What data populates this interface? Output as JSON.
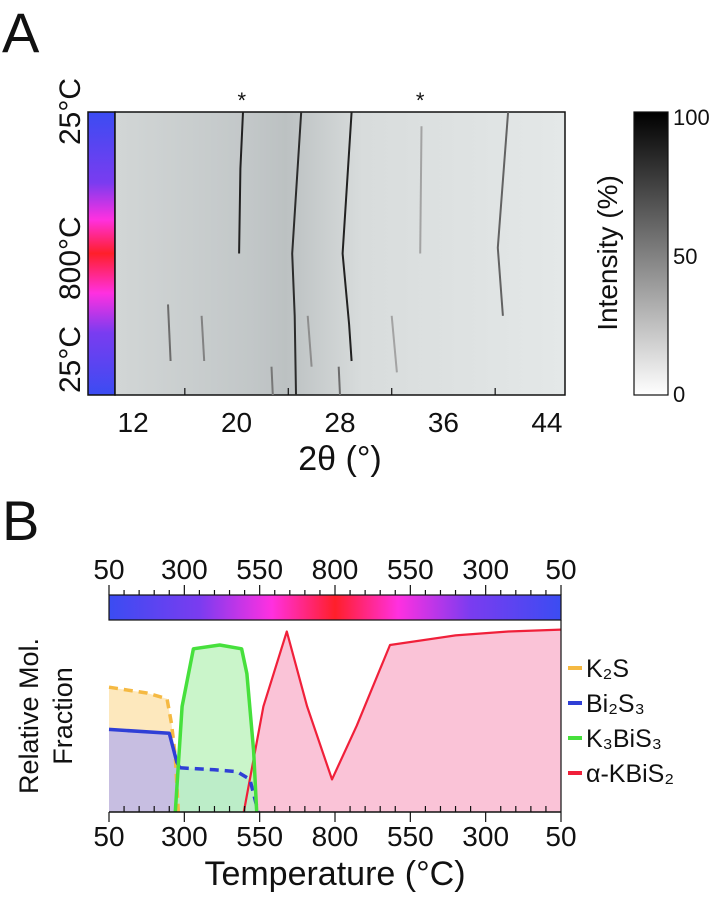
{
  "chart_data": [
    {
      "panel": "A",
      "type": "heatmap",
      "xlabel": "2θ (°)",
      "xticks": [
        "12",
        "20",
        "28",
        "36",
        "44"
      ],
      "xlim": [
        10.6,
        45.4
      ],
      "ylabels": [
        "25°C",
        "800°C",
        "25°C"
      ],
      "colorbar": {
        "label": "Intensity (%)",
        "ticks": [
          "100",
          "50",
          "0"
        ],
        "range": [
          0,
          100
        ]
      },
      "markers": [
        {
          "label": "*",
          "two_theta": 20.4
        },
        {
          "label": "*",
          "two_theta": 34.2
        }
      ],
      "reflections": [
        {
          "points": [
            [
              20.5,
              0.0
            ],
            [
              20.3,
              0.2
            ],
            [
              20.2,
              0.5
            ]
          ],
          "intensity": 85
        },
        {
          "points": [
            [
              25.0,
              0.0
            ],
            [
              24.3,
              0.5
            ],
            [
              24.5,
              0.72
            ],
            [
              24.6,
              1.0
            ]
          ],
          "intensity": 80
        },
        {
          "points": [
            [
              28.9,
              0.0
            ],
            [
              28.2,
              0.5
            ],
            [
              28.7,
              0.75
            ],
            [
              28.9,
              0.88
            ]
          ],
          "intensity": 85
        },
        {
          "points": [
            [
              34.3,
              0.05
            ],
            [
              34.2,
              0.5
            ]
          ],
          "intensity": 25
        },
        {
          "points": [
            [
              41.0,
              0.0
            ],
            [
              40.2,
              0.48
            ],
            [
              40.6,
              0.72
            ]
          ],
          "intensity": 55
        },
        {
          "points": [
            [
              14.7,
              0.68
            ],
            [
              14.9,
              0.88
            ]
          ],
          "intensity": 50
        },
        {
          "points": [
            [
              17.3,
              0.72
            ],
            [
              17.5,
              0.88
            ]
          ],
          "intensity": 40
        },
        {
          "points": [
            [
              25.5,
              0.72
            ],
            [
              25.8,
              0.9
            ]
          ],
          "intensity": 35
        },
        {
          "points": [
            [
              32.0,
              0.72
            ],
            [
              32.4,
              0.92
            ]
          ],
          "intensity": 25
        },
        {
          "points": [
            [
              27.9,
              0.9
            ],
            [
              28.0,
              1.0
            ]
          ],
          "intensity": 50
        },
        {
          "points": [
            [
              22.7,
              0.9
            ],
            [
              22.8,
              1.0
            ]
          ],
          "intensity": 45
        }
      ],
      "temperature_bar": {
        "colors": [
          "#3b4cf2",
          "#a040f0",
          "#ff30e0",
          "#ff1f2a",
          "#ff30e0",
          "#a040f0",
          "#3b4cf2"
        ]
      }
    },
    {
      "panel": "B",
      "type": "area",
      "xlabel": "Temperature (°C)",
      "ylabel": [
        "Relative Mol.",
        "Fraction"
      ],
      "xticks": [
        "50",
        "300",
        "550",
        "800",
        "550",
        "300",
        "50"
      ],
      "ylim": [
        0,
        1
      ],
      "legend_position": "right",
      "series": [
        {
          "name": "K₂S",
          "color": "#f5b942",
          "fill": "#fde2ad",
          "dashed": true,
          "points": [
            [
              0,
              0.65
            ],
            [
              0.5,
              0.62
            ],
            [
              0.77,
              0.59
            ],
            [
              0.83,
              0.46
            ],
            [
              0.88,
              0.29
            ],
            [
              0.92,
              0
            ]
          ]
        },
        {
          "name": "Bi₂S₃",
          "color": "#2f3fd6",
          "fill": "#b9b3ea",
          "dashed": false,
          "points": [
            [
              0,
              0.43
            ],
            [
              0.8,
              0.41
            ],
            [
              0.9,
              0.26
            ],
            [
              0.94,
              0.23
            ]
          ]
        },
        {
          "name": "Bi₂S₃ (dashed)",
          "color": "#2f3fd6",
          "fill": "#a9cdf2",
          "dashed": true,
          "points": [
            [
              0.94,
              0.23
            ],
            [
              1.4,
              0.22
            ],
            [
              1.7,
              0.21
            ],
            [
              1.87,
              0.17
            ],
            [
              1.98,
              0
            ]
          ]
        },
        {
          "name": "K₃BiS₃",
          "color": "#46e03c",
          "fill": "#bdf2bd",
          "dashed": false,
          "points": [
            [
              0.88,
              0
            ],
            [
              0.97,
              0.55
            ],
            [
              1.12,
              0.85
            ],
            [
              1.47,
              0.87
            ],
            [
              1.76,
              0.85
            ],
            [
              1.83,
              0.72
            ],
            [
              1.92,
              0.32
            ],
            [
              1.96,
              0
            ]
          ]
        },
        {
          "name": "α-KBiS₂",
          "color": "#f0203a",
          "fill": "#f9b4cd",
          "dashed": false,
          "points": [
            [
              1.79,
              0
            ],
            [
              2.05,
              0.55
            ],
            [
              2.36,
              0.94
            ],
            [
              2.63,
              0.55
            ],
            [
              2.96,
              0.17
            ],
            [
              3.29,
              0.45
            ],
            [
              3.73,
              0.87
            ],
            [
              4.6,
              0.92
            ],
            [
              5.3,
              0.94
            ],
            [
              6,
              0.95
            ]
          ]
        }
      ],
      "legend": [
        "K₂S",
        "Bi₂S₃",
        "K₃BiS₃",
        "α-KBiS₂"
      ],
      "temperature_bar": {
        "colors": [
          "#3b4cf2",
          "#a040f0",
          "#ff30e0",
          "#ff1f2a",
          "#ff30e0",
          "#a040f0",
          "#3b4cf2"
        ]
      }
    }
  ],
  "panels": {
    "a_label": "A",
    "b_label": "B"
  }
}
